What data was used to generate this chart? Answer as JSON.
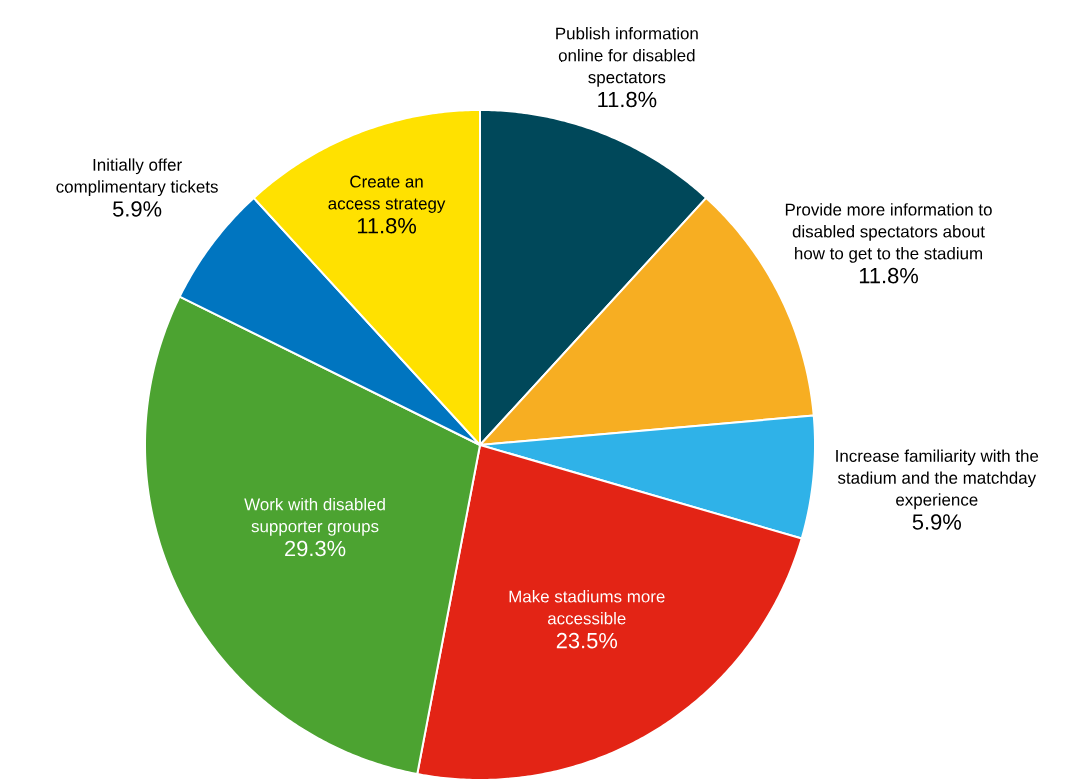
{
  "chart_data": {
    "type": "pie",
    "categories": [
      "Publish information online for disabled spectators",
      "Provide more information to disabled spectators about how to get to the stadium",
      "Increase familiarity with the stadium and the matchday experience",
      "Make stadiums more accessible",
      "Work with disabled supporter groups",
      "Initially offer complimentary tickets",
      "Create an access strategy"
    ],
    "values": [
      11.8,
      11.8,
      5.9,
      23.5,
      29.3,
      5.9,
      11.8
    ],
    "value_labels": [
      "11.8%",
      "11.8%",
      "5.9%",
      "23.5%",
      "29.3%",
      "5.9%",
      "11.8%"
    ],
    "colors": [
      "#00485a",
      "#f7ae22",
      "#2fb2e8",
      "#e32415",
      "#4ca331",
      "#0075c0",
      "#ffe100"
    ]
  }
}
